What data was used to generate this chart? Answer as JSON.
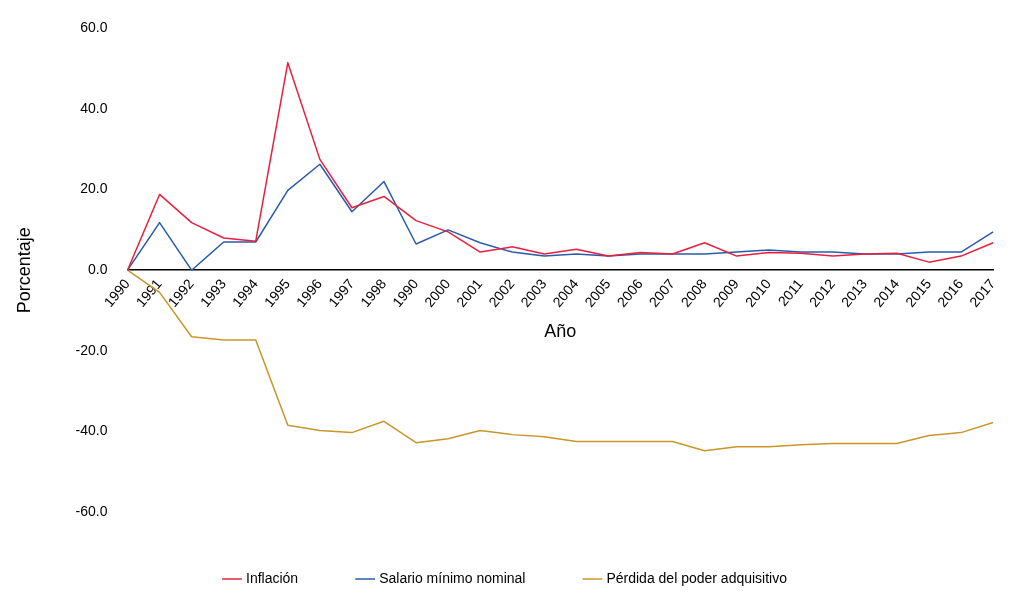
{
  "chart_data": {
    "type": "line",
    "xlabel": "Año",
    "ylabel": "Porcentaje",
    "categories": [
      "1990",
      "1991",
      "1992",
      "1993",
      "1994",
      "1995",
      "1996",
      "1997",
      "1998",
      "1990",
      "2000",
      "2001",
      "2002",
      "2003",
      "2004",
      "2005",
      "2006",
      "2007",
      "2008",
      "2009",
      "2010",
      "2011",
      "2012",
      "2013",
      "2014",
      "2015",
      "2016",
      "2017"
    ],
    "series": [
      {
        "name": "Inflación",
        "color": "#e8203f",
        "values": [
          0,
          18.8,
          11.8,
          8,
          7.2,
          51.5,
          27.5,
          15.5,
          18.3,
          12.3,
          9.5,
          4.5,
          5.8,
          4,
          5.2,
          3.5,
          4.4,
          4,
          6.8,
          3.5,
          4.4,
          4.2,
          3.5,
          4,
          4.2,
          2,
          3.5,
          6.8
        ]
      },
      {
        "name": "Salario mínimo nominal",
        "color": "#2a5caa",
        "values": [
          0,
          11.8,
          0,
          7,
          7,
          19.8,
          26.3,
          14.5,
          22,
          6.5,
          10,
          6.8,
          4.5,
          3.5,
          4,
          3.5,
          4,
          4,
          4,
          4.5,
          5,
          4.5,
          4.5,
          4,
          4,
          4.5,
          4.5,
          9.5
        ]
      },
      {
        "name": "Pérdida del poder adquisitivo",
        "color": "#c8962a",
        "values": [
          0,
          -5.5,
          -16.5,
          -17.3,
          -17.3,
          -38.5,
          -39.8,
          -40.3,
          -37.5,
          -42.8,
          -41.8,
          -39.8,
          -40.8,
          -41.3,
          -42.5,
          -42.5,
          -42.5,
          -42.5,
          -44.8,
          -43.8,
          -43.8,
          -43.3,
          -43,
          -43,
          -43,
          -41,
          -40.3,
          -37.8
        ]
      }
    ],
    "ylim": [
      -60,
      60
    ],
    "yticks": [
      {
        "value": -60,
        "label": "-60.0"
      },
      {
        "value": -40,
        "label": "-40.0"
      },
      {
        "value": -20,
        "label": "-20.0"
      },
      {
        "value": 0,
        "label": "0.0"
      },
      {
        "value": 20,
        "label": "20.0"
      },
      {
        "value": 40,
        "label": "40.0"
      },
      {
        "value": 60,
        "label": "60.0"
      }
    ],
    "grid": false,
    "legend": "bottom",
    "marker": "none",
    "line_style": "solid"
  }
}
